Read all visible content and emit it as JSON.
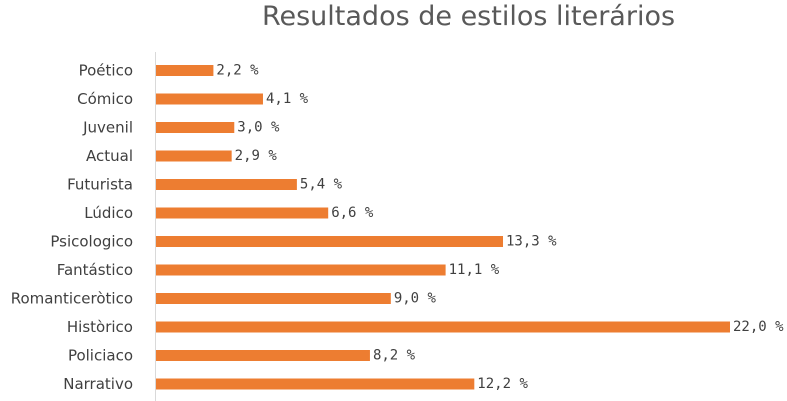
{
  "chart_data": {
    "type": "bar",
    "orientation": "horizontal",
    "title": "Resultados de estilos literários",
    "xlabel": "",
    "ylabel": "",
    "grid": false,
    "bar_color": "#ED7D31",
    "xlim": [
      0,
      22
    ],
    "categories": [
      "Poético",
      "Cómico",
      "Juvenil",
      "Actual",
      "Futurista",
      "Lúdico",
      "Psicologico",
      "Fantástico",
      "Romanticeròtico",
      "Històrico",
      "Policiaco",
      "Narrativo"
    ],
    "values": [
      2.2,
      4.1,
      3.0,
      2.9,
      5.4,
      6.6,
      13.3,
      11.1,
      9.0,
      22.0,
      8.2,
      12.2
    ],
    "value_labels": [
      "2,2 %",
      "4,1 %",
      "3,0 %",
      "2,9 %",
      "5,4 %",
      "6,6 %",
      "13,3 %",
      "11,1 %",
      "9,0 %",
      "22,0 %",
      "8,2 %",
      "12,2 %"
    ]
  }
}
